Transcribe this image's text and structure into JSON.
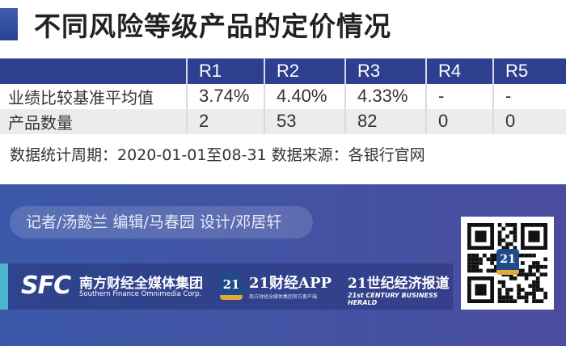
{
  "title": "不同风险等级产品的定价情况",
  "table": {
    "headers": [
      "",
      "R1",
      "R2",
      "R3",
      "R4",
      "R5"
    ],
    "rows": [
      [
        "业绩比较基准平均值",
        "3.74%",
        "4.40%",
        "4.33%",
        "-",
        "-"
      ],
      [
        "产品数量",
        "2",
        "53",
        "82",
        "0",
        "0"
      ]
    ]
  },
  "note": "数据统计周期：2020-01-01至08-31 数据来源：各银行官网",
  "credits": "记者/汤懿兰  编辑/马春园  设计/邓居轩",
  "logos": {
    "sfc": "SFC",
    "sfc_cn": "南方财经全媒体集团",
    "sfc_en": "Southern Finance Omnimedia Corp.",
    "app_badge": "21",
    "app": "21财经APP",
    "app_sub": "南方财经全媒体集团官方客户端",
    "herald": "21世纪经济报道",
    "herald_en": "21st CENTURY BUSINESS HERALD",
    "qr_badge": "21"
  },
  "colors": {
    "header": "#2f3f8f",
    "panel": "#3b58a8",
    "accent_strip": "#4bb6d0"
  }
}
